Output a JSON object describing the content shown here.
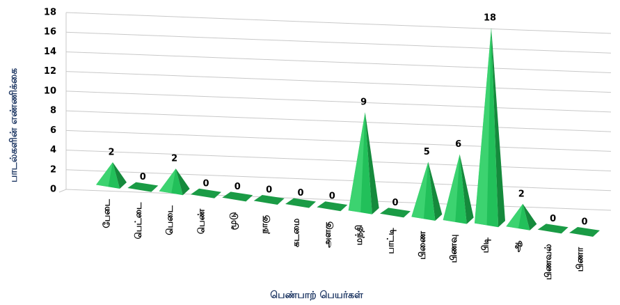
{
  "chart_data": {
    "type": "pyramid3d",
    "y_label": "பாடல்களின் எண்ணிக்கை",
    "x_label": "பெண்பாற் பெயர்கள்",
    "categories": [
      "பேடை",
      "பெட்டை",
      "பெடை",
      "பெண்",
      "மூடு",
      "நாகு",
      "கடமை",
      "அளகு",
      "மந்தி",
      "பாட்டி",
      "பிணை",
      "பிணவு",
      "பிடி",
      "ஆ",
      "பிணவல்",
      "பிணா"
    ],
    "values": [
      2,
      0,
      2,
      0,
      0,
      0,
      0,
      0,
      9,
      0,
      5,
      6,
      18,
      2,
      0,
      0
    ],
    "color": "#22c05a",
    "ylim": [
      0,
      18
    ],
    "yticks": [
      0,
      2,
      4,
      6,
      8,
      10,
      12,
      14,
      16,
      18
    ],
    "grid": true
  }
}
